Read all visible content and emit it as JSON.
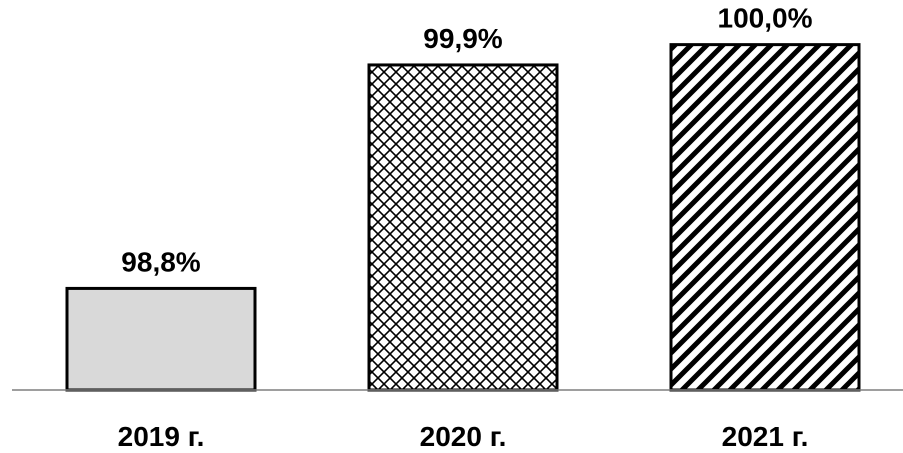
{
  "chart_data": {
    "type": "bar",
    "categories": [
      "2019 г.",
      "2020 г.",
      "2021 г."
    ],
    "values": [
      98.8,
      99.9,
      100.0
    ],
    "data_labels": [
      "98,8%",
      "99,9%",
      "100,0%"
    ],
    "ylim": [
      98.3,
      100.2
    ],
    "title": "",
    "xlabel": "",
    "ylabel": "",
    "grid": false,
    "legend": "none",
    "fills": [
      "solid-light-gray",
      "crosshatch",
      "diagonal-stripes"
    ],
    "colors": {
      "bar_solid": "#d9d9d9",
      "bar_pattern_bg": "#ffffff",
      "pattern_ink": "#000000",
      "axis_line": "#7f7f7f"
    }
  }
}
